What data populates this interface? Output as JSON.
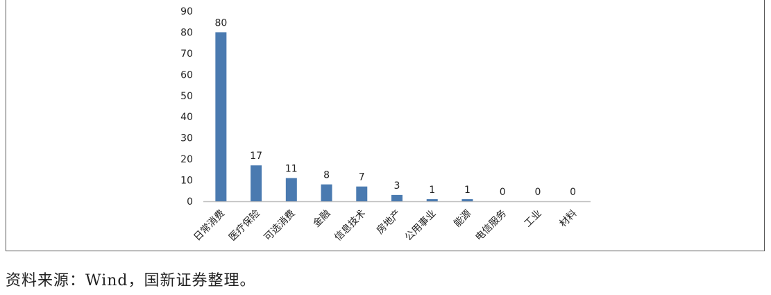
{
  "chart_data": {
    "type": "bar",
    "categories": [
      "日常消费",
      "医疗保险",
      "可选消费",
      "金融",
      "信息技术",
      "房地产",
      "公用事业",
      "能源",
      "电信服务",
      "工业",
      "材料"
    ],
    "values": [
      80,
      17,
      11,
      8,
      7,
      3,
      1,
      1,
      0,
      0,
      0
    ],
    "ylim": [
      0,
      90
    ],
    "yticks": [
      0,
      10,
      20,
      30,
      40,
      50,
      60,
      70,
      80,
      90
    ],
    "grid": false,
    "bar_color": "#4a7ab0",
    "axis_color": "#bfbfbf"
  },
  "source_note": "资料来源：Wind，国新证券整理。"
}
